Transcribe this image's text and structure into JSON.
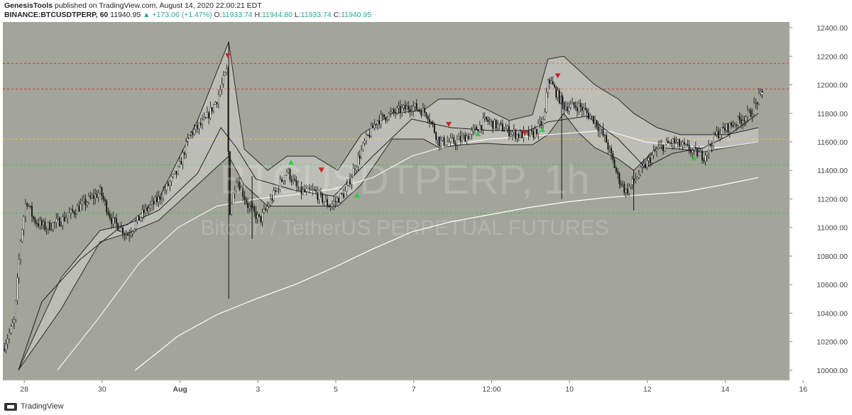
{
  "header": {
    "line1": {
      "author": "GenesisTools",
      "published": "published on TradingView.com, August 14, 2020 22:00:21 EDT"
    },
    "line2": {
      "symbol": "BINANCE:BTCUSDTPERP, 60",
      "last": "11940.95",
      "change": "▲ +173.06 (+1.47%)",
      "o_label": "O:",
      "o": "11933.74",
      "h_label": "H:",
      "h": "11944.80",
      "l_label": "L:",
      "l": "11933.74",
      "c_label": "C:",
      "c": "11940.95"
    }
  },
  "watermark": {
    "title": "BTCUSDTPERP, 1h",
    "subtitle": "Bitcoin / TetherUS PERPETUAL FUTURES"
  },
  "footer": {
    "brand": "TradingView"
  },
  "colors": {
    "plot_bg": "#a3a49a",
    "candle_up": "#ffffff",
    "candle_down": "#1a1a1a",
    "red_level": "#d23a3a",
    "yellow_level": "#e6c84a",
    "green_level": "#35c24e",
    "ma_white": "#ffffff",
    "signal_down": "#c62828",
    "signal_up": "#2ecc40"
  },
  "chart_data": {
    "type": "candlestick",
    "timeframe": "1h",
    "y_axis": {
      "ticks": [
        10000,
        10200,
        10400,
        10600,
        10800,
        11000,
        11200,
        11400,
        11600,
        11800,
        12000,
        12200,
        12400
      ],
      "tick_labels": [
        "10000.00",
        "10200.00",
        "10400.00",
        "10600.00",
        "10800.00",
        "11000.00",
        "11200.00",
        "11400.00",
        "11600.00",
        "11800.00",
        "12000.00",
        "12200.00",
        "12400.00"
      ],
      "range": [
        9930,
        12440
      ]
    },
    "x_axis": {
      "range_days": [
        0,
        20.2
      ],
      "ticks": [
        {
          "day": 0.55,
          "label": "28"
        },
        {
          "day": 2.55,
          "label": "30"
        },
        {
          "day": 4.55,
          "label": "Aug"
        },
        {
          "day": 6.55,
          "label": "3"
        },
        {
          "day": 8.55,
          "label": "5"
        },
        {
          "day": 10.55,
          "label": "7"
        },
        {
          "day": 12.55,
          "label": "12:00"
        },
        {
          "day": 14.55,
          "label": "10"
        },
        {
          "day": 16.55,
          "label": "12"
        },
        {
          "day": 18.55,
          "label": "14"
        },
        {
          "day": 20.55,
          "label": "16"
        }
      ]
    },
    "horizontal_levels": [
      {
        "price": 12150,
        "color": "red"
      },
      {
        "price": 11970,
        "color": "red"
      },
      {
        "price": 11620,
        "color": "yellow"
      },
      {
        "price": 11440,
        "color": "green"
      },
      {
        "price": 11100,
        "color": "green"
      }
    ],
    "price_path_anchors": [
      [
        0.0,
        10150
      ],
      [
        0.3,
        10350
      ],
      [
        0.45,
        10900
      ],
      [
        0.6,
        11200
      ],
      [
        0.8,
        11050
      ],
      [
        1.1,
        11000
      ],
      [
        1.5,
        11050
      ],
      [
        2.0,
        11150
      ],
      [
        2.5,
        11250
      ],
      [
        2.8,
        11050
      ],
      [
        3.2,
        10950
      ],
      [
        3.6,
        11100
      ],
      [
        4.0,
        11200
      ],
      [
        4.5,
        11400
      ],
      [
        4.8,
        11650
      ],
      [
        5.2,
        11750
      ],
      [
        5.5,
        11900
      ],
      [
        5.75,
        12100
      ],
      [
        5.82,
        11100
      ],
      [
        6.0,
        11350
      ],
      [
        6.3,
        11150
      ],
      [
        6.6,
        11050
      ],
      [
        7.0,
        11250
      ],
      [
        7.3,
        11400
      ],
      [
        7.6,
        11250
      ],
      [
        8.0,
        11250
      ],
      [
        8.4,
        11150
      ],
      [
        8.8,
        11250
      ],
      [
        9.0,
        11400
      ],
      [
        9.3,
        11600
      ],
      [
        9.6,
        11750
      ],
      [
        10.0,
        11800
      ],
      [
        10.5,
        11850
      ],
      [
        10.9,
        11800
      ],
      [
        11.2,
        11600
      ],
      [
        11.6,
        11600
      ],
      [
        12.0,
        11650
      ],
      [
        12.4,
        11750
      ],
      [
        12.8,
        11700
      ],
      [
        13.2,
        11650
      ],
      [
        13.6,
        11650
      ],
      [
        13.9,
        11750
      ],
      [
        14.0,
        12050
      ],
      [
        14.2,
        11950
      ],
      [
        14.4,
        11850
      ],
      [
        14.8,
        11850
      ],
      [
        15.2,
        11750
      ],
      [
        15.5,
        11600
      ],
      [
        15.8,
        11350
      ],
      [
        16.0,
        11250
      ],
      [
        16.4,
        11400
      ],
      [
        16.8,
        11550
      ],
      [
        17.2,
        11600
      ],
      [
        17.6,
        11550
      ],
      [
        18.0,
        11500
      ],
      [
        18.3,
        11650
      ],
      [
        18.6,
        11700
      ],
      [
        18.9,
        11750
      ],
      [
        19.2,
        11800
      ],
      [
        19.4,
        11900
      ],
      [
        19.5,
        11940
      ]
    ],
    "ma_short_anchors": [
      [
        0.4,
        10000
      ],
      [
        1.0,
        10480
      ],
      [
        2.0,
        10780
      ],
      [
        3.0,
        11000
      ],
      [
        4.0,
        11120
      ],
      [
        5.0,
        11380
      ],
      [
        5.6,
        11700
      ],
      [
        6.0,
        11560
      ],
      [
        6.5,
        11340
      ],
      [
        7.5,
        11260
      ],
      [
        8.5,
        11220
      ],
      [
        9.5,
        11500
      ],
      [
        10.5,
        11760
      ],
      [
        11.5,
        11700
      ],
      [
        12.5,
        11680
      ],
      [
        13.5,
        11680
      ],
      [
        14.0,
        11740
      ],
      [
        15.0,
        11780
      ],
      [
        15.8,
        11620
      ],
      [
        16.5,
        11420
      ],
      [
        17.2,
        11520
      ],
      [
        18.0,
        11560
      ],
      [
        18.6,
        11640
      ],
      [
        19.4,
        11800
      ]
    ],
    "ma_mid_anchors": [
      [
        1.4,
        10000
      ],
      [
        2.5,
        10380
      ],
      [
        3.5,
        10750
      ],
      [
        4.5,
        11000
      ],
      [
        5.5,
        11150
      ],
      [
        6.5,
        11200
      ],
      [
        7.5,
        11230
      ],
      [
        8.5,
        11270
      ],
      [
        9.5,
        11350
      ],
      [
        10.5,
        11500
      ],
      [
        11.5,
        11580
      ],
      [
        12.5,
        11620
      ],
      [
        13.5,
        11640
      ],
      [
        14.5,
        11660
      ],
      [
        15.5,
        11680
      ],
      [
        16.5,
        11600
      ],
      [
        17.5,
        11570
      ],
      [
        18.5,
        11560
      ],
      [
        19.4,
        11600
      ]
    ],
    "ma_long_anchors": [
      [
        3.4,
        10000
      ],
      [
        4.5,
        10240
      ],
      [
        5.5,
        10390
      ],
      [
        6.5,
        10500
      ],
      [
        7.5,
        10600
      ],
      [
        8.5,
        10720
      ],
      [
        9.5,
        10850
      ],
      [
        10.5,
        10970
      ],
      [
        11.5,
        11040
      ],
      [
        12.5,
        11090
      ],
      [
        13.5,
        11140
      ],
      [
        14.5,
        11180
      ],
      [
        15.5,
        11210
      ],
      [
        16.5,
        11230
      ],
      [
        17.5,
        11250
      ],
      [
        18.5,
        11300
      ],
      [
        19.4,
        11350
      ]
    ],
    "cloud_upper_anchors": [
      [
        0.4,
        10000
      ],
      [
        1.5,
        10650
      ],
      [
        2.5,
        10980
      ],
      [
        3.2,
        11020
      ],
      [
        4.0,
        11200
      ],
      [
        5.0,
        11750
      ],
      [
        5.8,
        12300
      ],
      [
        6.2,
        11550
      ],
      [
        6.8,
        11400
      ],
      [
        7.3,
        11500
      ],
      [
        8.0,
        11500
      ],
      [
        8.6,
        11400
      ],
      [
        9.2,
        11650
      ],
      [
        10.0,
        11800
      ],
      [
        10.8,
        11820
      ],
      [
        11.2,
        11900
      ],
      [
        11.8,
        11900
      ],
      [
        12.4,
        11830
      ],
      [
        13.0,
        11750
      ],
      [
        13.6,
        11790
      ],
      [
        14.0,
        12180
      ],
      [
        14.4,
        12200
      ],
      [
        14.8,
        12100
      ],
      [
        15.2,
        12000
      ],
      [
        15.8,
        11900
      ],
      [
        16.2,
        11800
      ],
      [
        16.8,
        11700
      ],
      [
        17.4,
        11650
      ],
      [
        18.0,
        11650
      ],
      [
        18.6,
        11650
      ],
      [
        19.4,
        11700
      ]
    ],
    "cloud_lower_anchors": [
      [
        0.4,
        10000
      ],
      [
        1.5,
        10430
      ],
      [
        2.5,
        10900
      ],
      [
        3.2,
        10960
      ],
      [
        4.0,
        11050
      ],
      [
        5.0,
        11300
      ],
      [
        5.8,
        11500
      ],
      [
        6.2,
        11300
      ],
      [
        6.8,
        11150
      ],
      [
        7.3,
        11150
      ],
      [
        8.0,
        11150
      ],
      [
        8.6,
        11150
      ],
      [
        9.2,
        11300
      ],
      [
        10.0,
        11620
      ],
      [
        10.8,
        11620
      ],
      [
        11.2,
        11560
      ],
      [
        11.8,
        11580
      ],
      [
        12.4,
        11590
      ],
      [
        13.0,
        11580
      ],
      [
        13.6,
        11580
      ],
      [
        14.0,
        11650
      ],
      [
        14.4,
        11800
      ],
      [
        14.8,
        11660
      ],
      [
        15.2,
        11560
      ],
      [
        15.8,
        11480
      ],
      [
        16.2,
        11400
      ],
      [
        16.8,
        11560
      ],
      [
        17.4,
        11550
      ],
      [
        18.0,
        11530
      ],
      [
        18.6,
        11560
      ],
      [
        19.4,
        11600
      ]
    ],
    "signals": [
      {
        "day": 5.78,
        "price": 12200,
        "dir": "down"
      },
      {
        "day": 7.4,
        "price": 11460,
        "dir": "up"
      },
      {
        "day": 8.18,
        "price": 11400,
        "dir": "down"
      },
      {
        "day": 9.1,
        "price": 11230,
        "dir": "up"
      },
      {
        "day": 11.45,
        "price": 11720,
        "dir": "down"
      },
      {
        "day": 12.2,
        "price": 11660,
        "dir": "up"
      },
      {
        "day": 13.4,
        "price": 11660,
        "dir": "down"
      },
      {
        "day": 13.85,
        "price": 11690,
        "dir": "up"
      },
      {
        "day": 14.25,
        "price": 12060,
        "dir": "down"
      },
      {
        "day": 17.75,
        "price": 11490,
        "dir": "up"
      }
    ]
  }
}
